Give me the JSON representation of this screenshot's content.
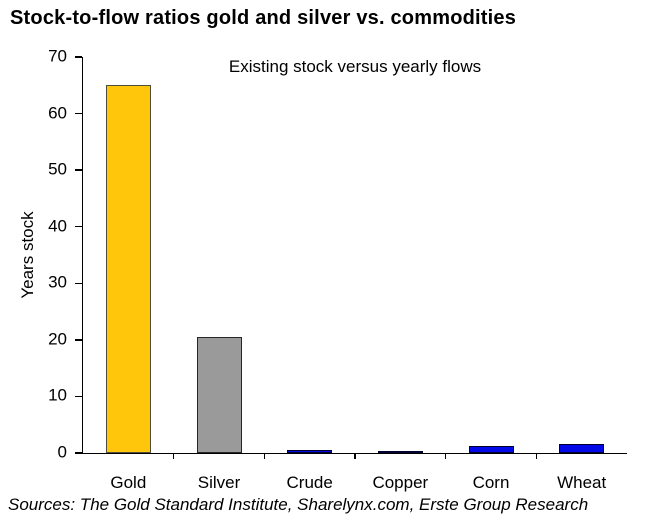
{
  "chart_data": {
    "type": "bar",
    "title": "Stock-to-flow ratios gold and silver vs. commodities",
    "subtitle": "Existing stock versus yearly flows",
    "ylabel": "Years stock",
    "xlabel": "",
    "categories": [
      "Gold",
      "Silver",
      "Crude",
      "Copper",
      "Corn",
      "Wheat"
    ],
    "values": [
      65,
      20.5,
      0.6,
      0.4,
      1.3,
      1.6
    ],
    "bar_fill_colors": [
      "#FFC60B",
      "#9A9A9A",
      "#0009E6",
      "#0009E6",
      "#0009E6",
      "#0009E6"
    ],
    "bar_border_colors": [
      "#4D4D3A",
      "#262626",
      "#00002E",
      "#00002E",
      "#00002E",
      "#00002E"
    ],
    "ylim": [
      0,
      70
    ],
    "yticks": [
      0,
      10,
      20,
      30,
      40,
      50,
      60,
      70
    ],
    "grid": false,
    "legend": false,
    "legend_position": "none"
  },
  "source_note": "Sources: The Gold Standard Institute, Sharelynx.com, Erste Group Research",
  "colors": {
    "background": "#FFFFFF",
    "axis": "#000000",
    "text": "#000000",
    "gold": "#FFC60B",
    "silver": "#9A9A9A",
    "commodity_blue": "#0009E6"
  }
}
